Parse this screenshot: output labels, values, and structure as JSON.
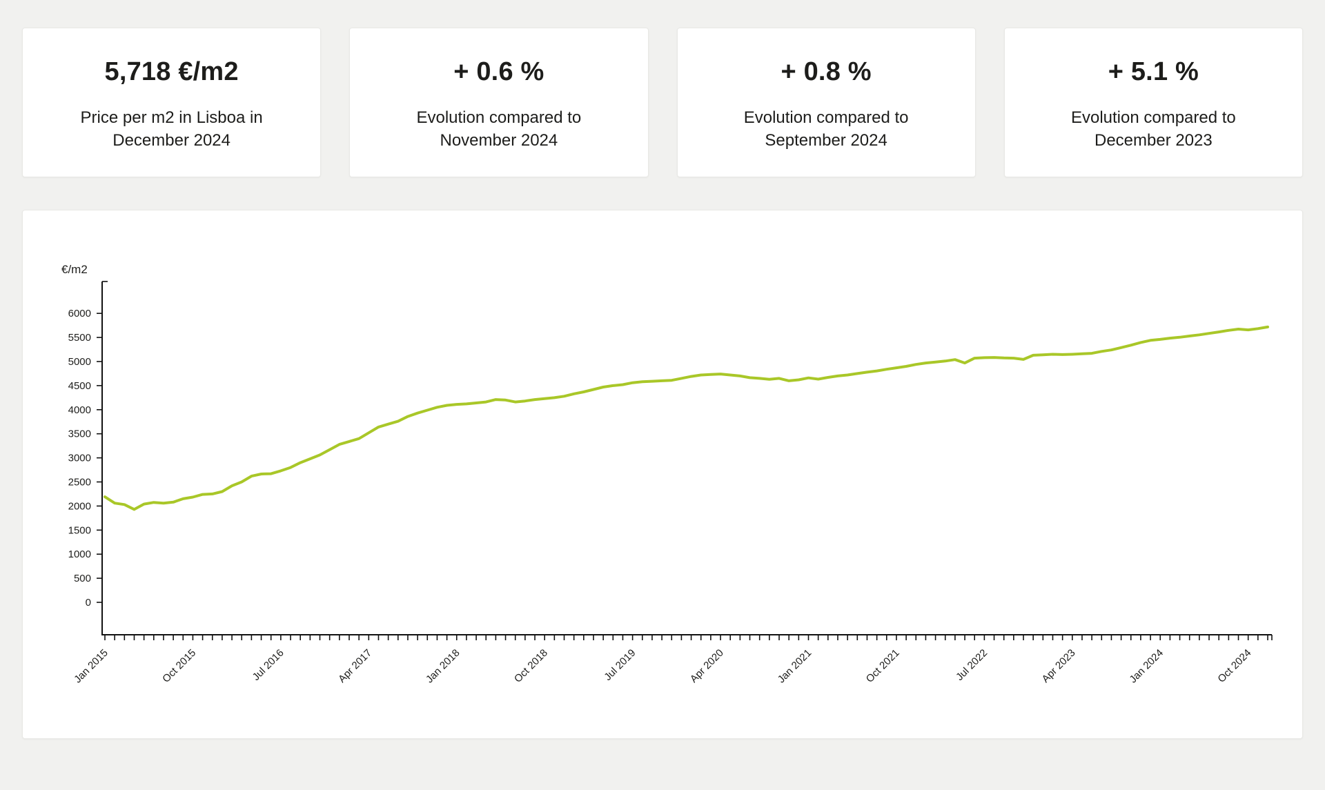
{
  "page": {
    "background_color": "#f1f1ef",
    "card_color": "#ffffff"
  },
  "stat_cards": [
    {
      "value": "5,718 €/m2",
      "label": "Price per m2 in Lisboa in December 2024"
    },
    {
      "value": "+ 0.6 %",
      "label": "Evolution compared to November 2024"
    },
    {
      "value": "+ 0.8 %",
      "label": "Evolution compared to September 2024"
    },
    {
      "value": "+ 5.1 %",
      "label": "Evolution compared to December 2023"
    }
  ],
  "chart_data": {
    "type": "line",
    "title": "",
    "ylabel": "€/m2",
    "xlabel": "",
    "grid": false,
    "legend": "none",
    "line_color": "#a9c728",
    "axis_color": "#111111",
    "ylim": [
      0,
      6600
    ],
    "y_ticks": [
      0,
      500,
      1000,
      1500,
      2000,
      2500,
      3000,
      3500,
      4000,
      4500,
      5000,
      5500,
      6000
    ],
    "x_start": "Jan 2015",
    "x_end": "Dec 2024",
    "x_interval": "monthly",
    "x_tick_label_step_months": 9,
    "x_tick_labels": [
      "Jan 2015",
      "Oct 2015",
      "Jul 2016",
      "Apr 2017",
      "Jan 2018",
      "Oct 2018",
      "Jul 2019",
      "Apr 2020",
      "Jan 2021",
      "Oct 2021",
      "Jul 2022",
      "Apr 2023",
      "Jan 2024",
      "Oct 2024"
    ],
    "series": [
      {
        "name": "Price per m2 in Lisboa",
        "start_month": "Jan 2015",
        "values": [
          2190,
          2060,
          2030,
          1930,
          2040,
          2075,
          2060,
          2080,
          2150,
          2185,
          2240,
          2250,
          2300,
          2420,
          2500,
          2620,
          2665,
          2670,
          2730,
          2800,
          2900,
          2980,
          3060,
          3170,
          3280,
          3340,
          3400,
          3520,
          3640,
          3700,
          3760,
          3860,
          3930,
          3990,
          4050,
          4090,
          4110,
          4120,
          4140,
          4160,
          4210,
          4200,
          4160,
          4180,
          4210,
          4230,
          4250,
          4280,
          4330,
          4370,
          4420,
          4470,
          4500,
          4520,
          4560,
          4580,
          4590,
          4600,
          4610,
          4650,
          4690,
          4720,
          4730,
          4740,
          4720,
          4700,
          4665,
          4650,
          4630,
          4650,
          4600,
          4620,
          4660,
          4635,
          4670,
          4700,
          4720,
          4750,
          4780,
          4805,
          4840,
          4870,
          4900,
          4940,
          4970,
          4990,
          5010,
          5040,
          4970,
          5070,
          5080,
          5085,
          5075,
          5070,
          5045,
          5130,
          5140,
          5150,
          5145,
          5150,
          5160,
          5170,
          5210,
          5240,
          5290,
          5340,
          5395,
          5440,
          5460,
          5485,
          5505,
          5530,
          5555,
          5585,
          5615,
          5648,
          5673,
          5658,
          5684,
          5718
        ]
      }
    ]
  }
}
